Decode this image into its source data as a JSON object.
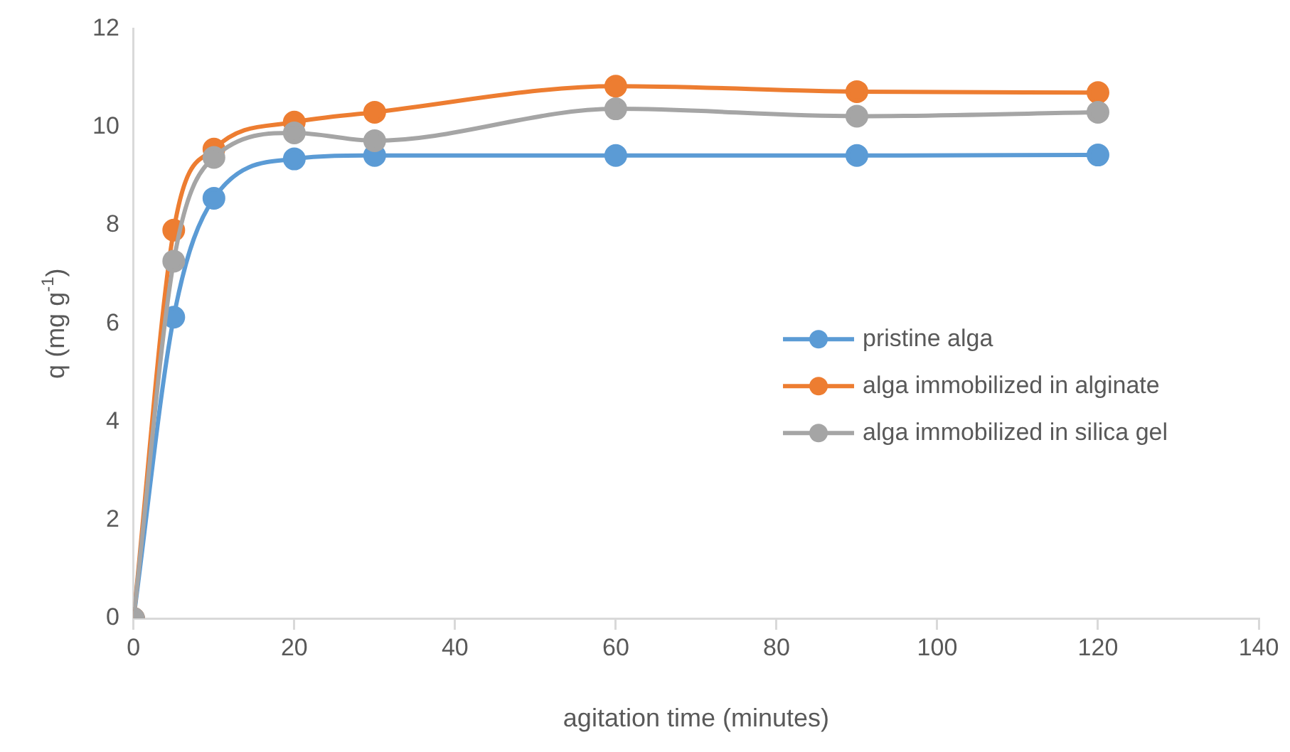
{
  "chart_data": {
    "type": "line",
    "xlabel": "agitation time (minutes)",
    "ylabel": "q (mg g$^{-1}$)",
    "x": [
      0,
      5,
      10,
      20,
      30,
      60,
      90,
      120
    ],
    "series": [
      {
        "name": "pristine alga",
        "color": "#5b9bd5",
        "values": [
          0,
          6.13,
          8.55,
          9.35,
          9.42,
          9.42,
          9.42,
          9.43
        ]
      },
      {
        "name": "alga immobilized in alginate",
        "color": "#ed7d31",
        "values": [
          0,
          7.9,
          9.55,
          10.1,
          10.3,
          10.83,
          10.72,
          10.7
        ]
      },
      {
        "name": "alga immobilized in silica gel",
        "color": "#a5a5a5",
        "values": [
          0,
          7.27,
          9.38,
          9.88,
          9.72,
          10.37,
          10.22,
          10.3
        ]
      }
    ],
    "xlim": [
      0,
      140
    ],
    "xticks": [
      0,
      20,
      40,
      60,
      80,
      100,
      120,
      140
    ],
    "ylim": [
      0,
      12
    ],
    "yticks": [
      0,
      2,
      4,
      6,
      8,
      10,
      12
    ],
    "grid": false,
    "legend": "right",
    "marker": "circle",
    "line_style": "solid"
  }
}
